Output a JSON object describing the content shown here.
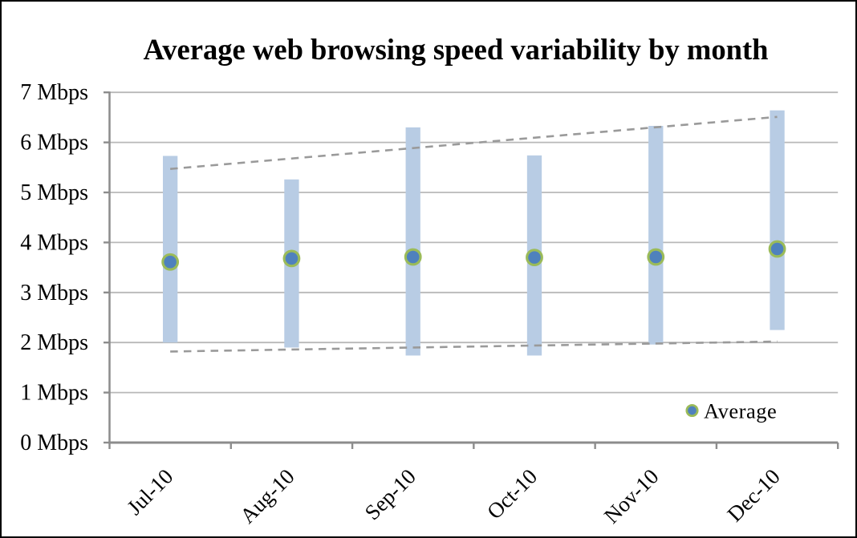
{
  "title": "Average web browsing speed variability by month",
  "legend": {
    "label": "Average"
  },
  "colors": {
    "range_bar": "#b8cce4",
    "average_marker_fill": "#4f81bd",
    "average_marker_ring": "#9bbb59",
    "gridline": "#b8b8b8",
    "axis": "#8c8c8c",
    "trendline": "#9a9a9a",
    "text": "#000000",
    "frame_border": "#000000",
    "background": "#ffffff"
  },
  "chart_data": {
    "type": "bar",
    "title": "Average web browsing speed variability by month",
    "categories": [
      "Jul-10",
      "Aug-10",
      "Sep-10",
      "Oct-10",
      "Nov-10",
      "Dec-10"
    ],
    "series": [
      {
        "name": "Speed range (min to max)",
        "type": "floating-bar",
        "min": [
          2.0,
          1.9,
          1.74,
          1.74,
          1.96,
          2.25
        ],
        "max": [
          5.73,
          5.26,
          6.3,
          5.74,
          6.33,
          6.64
        ]
      },
      {
        "name": "Average",
        "type": "scatter",
        "values": [
          3.61,
          3.68,
          3.71,
          3.7,
          3.71,
          3.87
        ]
      }
    ],
    "trendlines": [
      {
        "name": "max-trend",
        "style": "dashed",
        "start_value": 5.47,
        "end_value": 6.51
      },
      {
        "name": "min-trend",
        "style": "dashed",
        "start_value": 1.82,
        "end_value": 2.02
      }
    ],
    "xlabel": "",
    "ylabel": "",
    "ylim": [
      0,
      7
    ],
    "ytick_step": 1,
    "ytick_labels": [
      "0 Mbps",
      "1 Mbps",
      "2 Mbps",
      "3 Mbps",
      "4 Mbps",
      "5 Mbps",
      "6 Mbps",
      "7 Mbps"
    ],
    "grid": true,
    "legend_position": "inside-bottom-right"
  }
}
